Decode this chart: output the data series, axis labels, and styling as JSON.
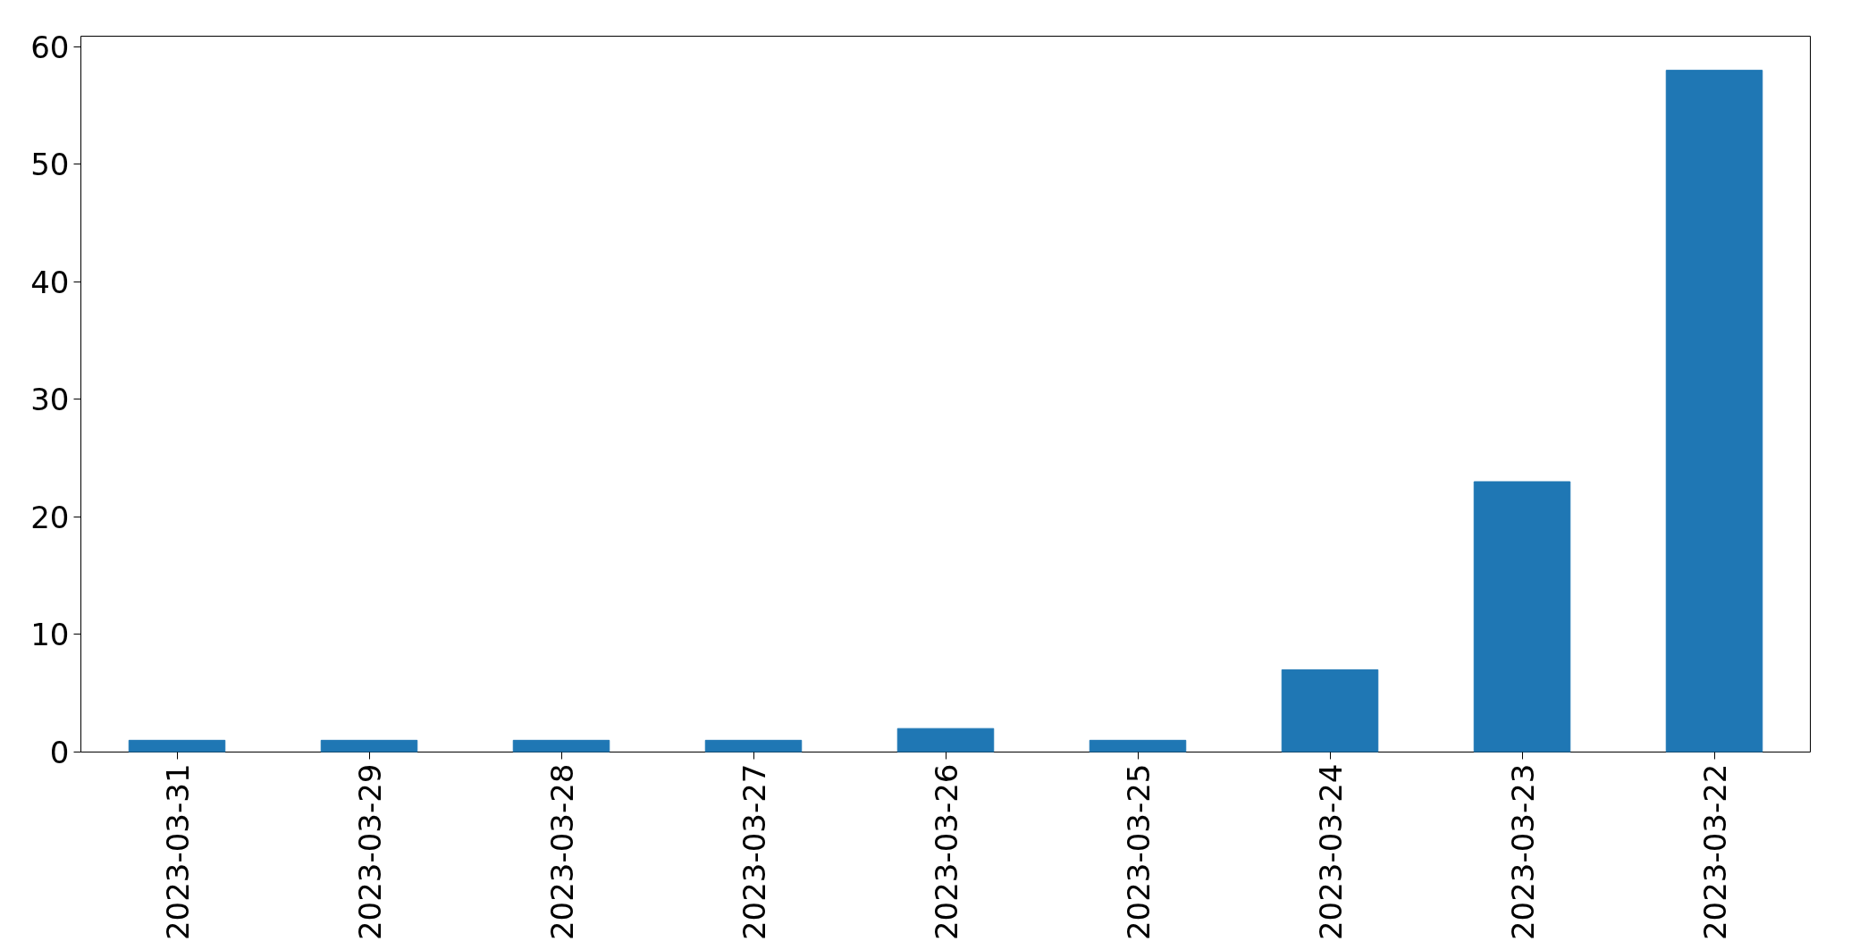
{
  "chart_data": {
    "type": "bar",
    "categories": [
      "2023-03-31",
      "2023-03-29",
      "2023-03-28",
      "2023-03-27",
      "2023-03-26",
      "2023-03-25",
      "2023-03-24",
      "2023-03-23",
      "2023-03-22"
    ],
    "values": [
      1,
      1,
      1,
      1,
      2,
      1,
      7,
      23,
      58
    ],
    "color": "#1f77b4",
    "ylim": [
      0,
      60.9
    ],
    "yticks": [
      0,
      10,
      20,
      30,
      40,
      50,
      60
    ],
    "grid": false
  }
}
